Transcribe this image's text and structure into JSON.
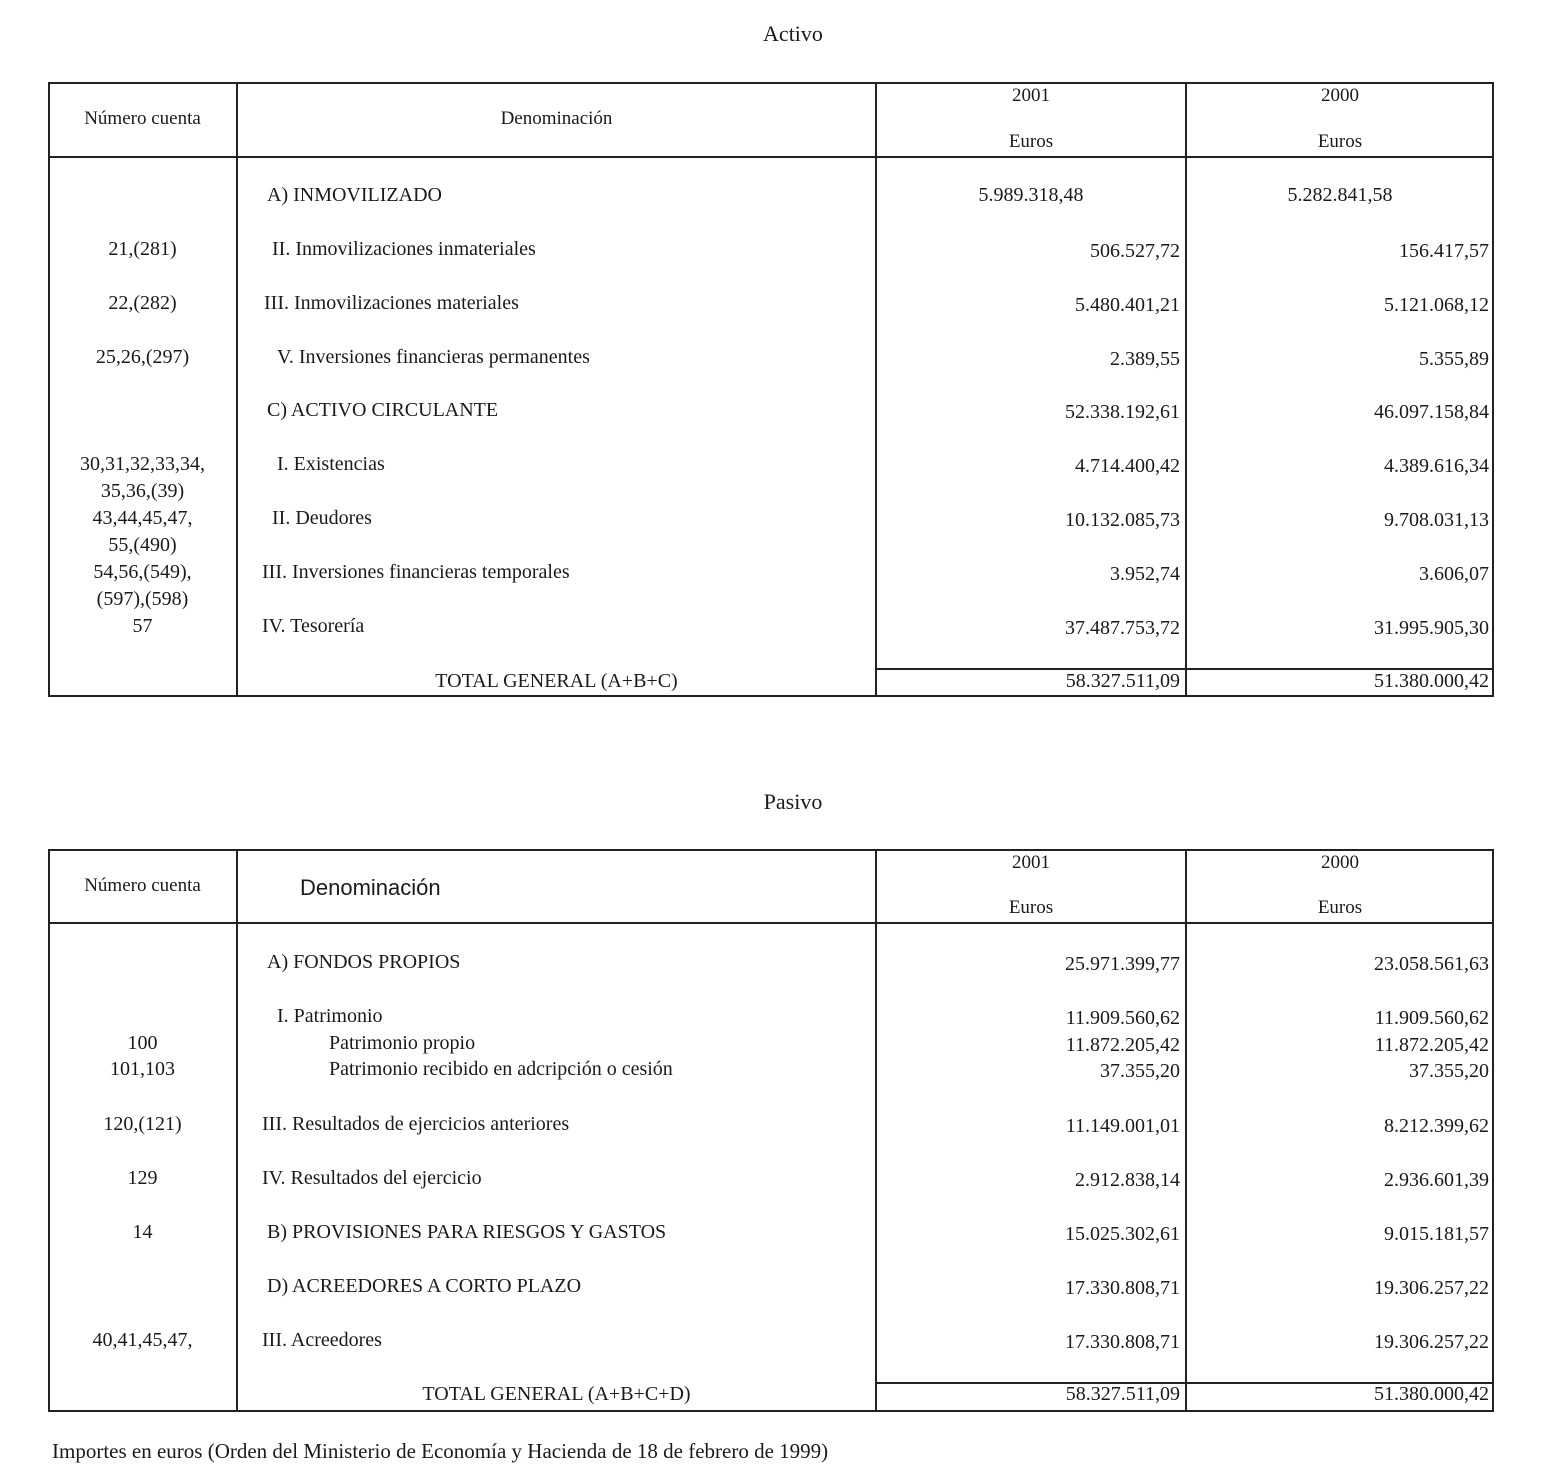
{
  "activo": {
    "title": "Activo",
    "headers": {
      "account": "Número cuenta",
      "name": "Denominación",
      "year1": "2001",
      "year2": "2000",
      "unit1": "Euros",
      "unit2": "Euros"
    },
    "rows": [
      {
        "account": "",
        "label": "A) INMOVILIZADO",
        "v2001": "5.989.318,48",
        "v2000": "5.282.841,58"
      },
      {
        "account": "21,(281)",
        "label": "II.  Inmovilizaciones inmateriales",
        "v2001": "506.527,72",
        "v2000": "156.417,57"
      },
      {
        "account": "22,(282)",
        "label": "III.  Inmovilizaciones materiales",
        "v2001": "5.480.401,21",
        "v2000": "5.121.068,12"
      },
      {
        "account": "25,26,(297)",
        "label": "V.  Inversiones financieras permanentes",
        "v2001": "2.389,55",
        "v2000": "5.355,89"
      },
      {
        "account": "",
        "label": "C) ACTIVO CIRCULANTE",
        "v2001": "52.338.192,61",
        "v2000": "46.097.158,84"
      },
      {
        "account": "30,31,32,33,34,",
        "account2": "35,36,(39)",
        "label": "I. Existencias",
        "v2001": "4.714.400,42",
        "v2000": "4.389.616,34"
      },
      {
        "account": "43,44,45,47,",
        "account2": "55,(490)",
        "label": "II. Deudores",
        "v2001": "10.132.085,73",
        "v2000": "9.708.031,13"
      },
      {
        "account": "54,56,(549),",
        "account2": "(597),(598)",
        "label": "III. Inversiones financieras temporales",
        "v2001": "3.952,74",
        "v2000": "3.606,07"
      },
      {
        "account": "57",
        "label": "IV. Tesorería",
        "v2001": "37.487.753,72",
        "v2000": "31.995.905,30"
      }
    ],
    "total": {
      "label": "TOTAL GENERAL (A+B+C)",
      "v2001": "58.327.511,09",
      "v2000": "51.380.000,42"
    }
  },
  "pasivo": {
    "title": "Pasivo",
    "headers": {
      "account": "Número cuenta",
      "name": "Denominación",
      "year1": "2001",
      "year2": "2000",
      "unit1": "Euros",
      "unit2": "Euros"
    },
    "rows": [
      {
        "account": "",
        "label": "A) FONDOS PROPIOS",
        "v2001": "25.971.399,77",
        "v2000": "23.058.561,63"
      },
      {
        "account": "",
        "label": "I.  Patrimonio",
        "v2001": "11.909.560,62",
        "v2000": "11.909.560,62"
      },
      {
        "account": "100",
        "label": "Patrimonio propio",
        "v2001": "11.872.205,42",
        "v2000": "11.872.205,42"
      },
      {
        "account": "101,103",
        "label": "Patrimonio recibido en adcripción o cesión",
        "v2001": "37.355,20",
        "v2000": "37.355,20"
      },
      {
        "account": "120,(121)",
        "label": "III.  Resultados de ejercicios anteriores",
        "v2001": "11.149.001,01",
        "v2000": "8.212.399,62"
      },
      {
        "account": "129",
        "label": "IV.  Resultados del ejercicio",
        "v2001": "2.912.838,14",
        "v2000": "2.936.601,39"
      },
      {
        "account": "14",
        "label": "B)  PROVISIONES PARA RIESGOS Y GASTOS",
        "v2001": "15.025.302,61",
        "v2000": "9.015.181,57"
      },
      {
        "account": "",
        "label": "D)  ACREEDORES A CORTO PLAZO",
        "v2001": "17.330.808,71",
        "v2000": "19.306.257,22"
      },
      {
        "account": "40,41,45,47,",
        "label": "III.  Acreedores",
        "v2001": "17.330.808,71",
        "v2000": "19.306.257,22"
      }
    ],
    "total": {
      "label": "TOTAL GENERAL (A+B+C+D)",
      "v2001": "58.327.511,09",
      "v2000": "51.380.000,42"
    }
  },
  "footnote": "Importes en euros (Orden del Ministerio de Economía y Hacienda de 18 de febrero de 1999)"
}
